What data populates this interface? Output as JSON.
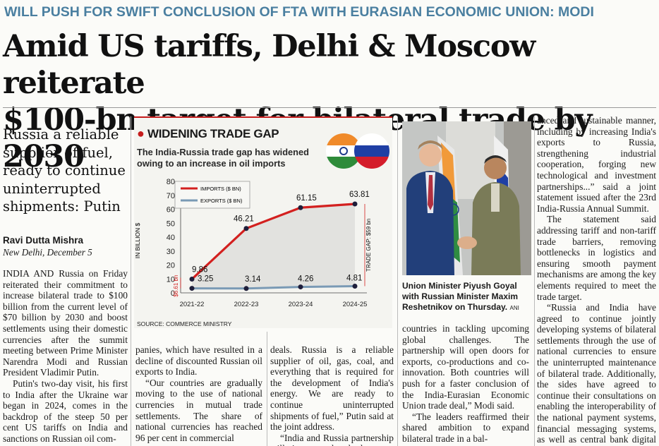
{
  "kicker": "WILL PUSH FOR SWIFT CONCLUSION OF FTA WITH EURASIAN ECONOMIC UNION: MODI",
  "headline": {
    "line1": "Amid US tariffs, Delhi & Moscow reiterate",
    "line2": "$100-bn target for bilateral trade by 2030"
  },
  "subhead": "Russia a reliable supplier of fuel, ready to continue uninterrupted shipments: Putin",
  "byline": "Ravi Dutta Mishra",
  "dateline": "New Delhi, December 5",
  "body": {
    "col1": [
      "INDIA AND Russia on Friday reiterated their commitment to increase bilateral trade to $100 billion from the current level of $70 billion by 2030 and boost settlements using their domestic currencies after the summit meeting between Prime Minister Narendra Modi and Russian President Vladimir Putin.",
      "Putin's two-day visit, his first to India after the Ukraine war began in 2024, comes in the backdrop of the steep 50 per cent US tariffs on India and sanctions on Russian oil com-"
    ],
    "col2": [
      "panies, which have resulted in a decline of discounted Russian oil exports to India.",
      "“Our countries are gradually moving to the use of national currencies in mutual trade settlements. The share of national currencies has reached 96 per cent in commercial"
    ],
    "col3": [
      "deals. Russia is a reliable supplier of oil, gas, coal, and everything that is required for the development of India's energy. We are ready to continue uninterrupted shipments of fuel,” Putin said at the joint address.",
      "“India and Russia partnership will give strength to both"
    ],
    "col4": [
      "countries in tackling upcoming global challenges. The partnership will open doors for exports, co-productions and co-innovation. Both countries will push for a faster conclusion of the India-Eurasian Economic Union trade deal,” Modi said.",
      "“The leaders reaffirmed their shared ambition to expand bilateral trade in a bal-"
    ],
    "col5": [
      "anced and sustainable manner, including by increasing India's exports to Russia, strengthening industrial cooperation, forging new technological and investment partnerships...” said a joint statement issued after the 23rd India-Russia Annual Summit.",
      "The statement said addressing tariff and non-tariff trade barriers, removing bottlenecks in logistics and ensuring smooth payment mechanisms are among the key elements required to meet the trade target.",
      "“Russia and India have agreed to continue jointly developing systems of bilateral settlements through the use of national currencies to ensure the uninterrupted maintenance of bilateral trade. Additionally, the sides have agreed to continue their consultations on enabling the interoperability of the national payment systems, financial messaging systems, as well as central bank digital currency platforms,” the statement said."
    ]
  },
  "photo_caption": {
    "text": "Union Minister Piyush Goyal with Russian Minister Maxim Reshetnikov on Thursday.",
    "credit": "ANI"
  },
  "chart_data": {
    "type": "line",
    "title": "WIDENING TRADE GAP",
    "subtitle": "The India-Russia trade gap has widened owing to an increase in oil imports",
    "categories": [
      "2021-22",
      "2022-23",
      "2023-24",
      "2024-25"
    ],
    "series": [
      {
        "name": "IMPORTS ($ BN)",
        "values": [
          9.86,
          46.21,
          61.15,
          63.81
        ],
        "labels": [
          "9.86",
          "46.21",
          "61.15",
          "63.81"
        ],
        "color": "#d3201f"
      },
      {
        "name": "EXPORTS ($ BN)",
        "values": [
          3.25,
          3.14,
          4.26,
          4.81
        ],
        "labels": [
          "3.25",
          "3.14",
          "4.26",
          "4.81"
        ],
        "color": "#7a9ab5"
      }
    ],
    "ylabel": "IN BILLION $",
    "ylim": [
      0,
      80
    ],
    "yticks": [
      "0",
      "10",
      "20",
      "30",
      "40",
      "50",
      "60",
      "70",
      "80"
    ],
    "annotations": {
      "gap_start": "$6.61 bn",
      "gap_end": "TRADE GAP: $59 bn"
    },
    "source": "SOURCE: COMMERCE MINISTRY",
    "grid": false,
    "legend": "top-left"
  }
}
